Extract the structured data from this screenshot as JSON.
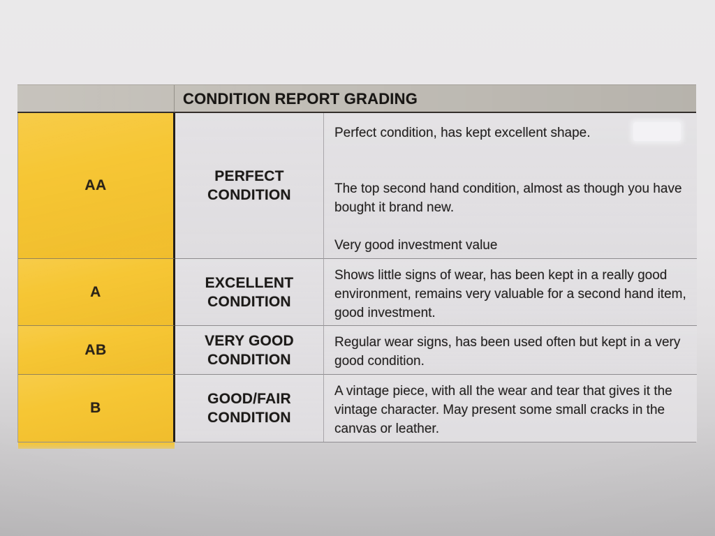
{
  "colors": {
    "paper": "#e6e4e6",
    "header_gray": "#c2beb7",
    "grade_yellow": "#f6c530",
    "cell_bg": "#e2e0e3",
    "ink": "#211f1e"
  },
  "table": {
    "title": "CONDITION REPORT GRADING",
    "rows": [
      {
        "grade": "AA",
        "label": "PERFECT\nCONDITION",
        "paragraphs": [
          "Perfect condition, has kept excellent shape.",
          "The top second hand condition, almost as though you have bought it brand new.",
          "Very good investment value"
        ]
      },
      {
        "grade": "A",
        "label": "EXCELLENT\nCONDITION",
        "paragraphs": [
          "Shows little signs of wear, has been kept in a really good environment, remains very valuable for a second hand item, good investment."
        ]
      },
      {
        "grade": "AB",
        "label": "VERY GOOD\nCONDITION",
        "paragraphs": [
          "Regular wear signs, has been used often but kept in a very good condition."
        ]
      },
      {
        "grade": "B",
        "label": "GOOD/FAIR\nCONDITION",
        "paragraphs": [
          "A vintage piece, with all the wear and tear that gives it the vintage character. May present some small cracks in the canvas or leather."
        ]
      }
    ]
  }
}
